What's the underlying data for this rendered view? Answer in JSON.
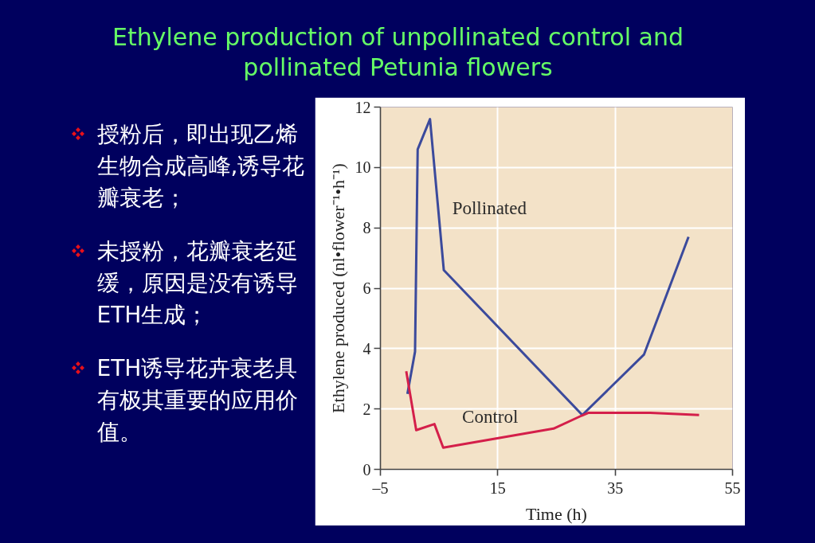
{
  "chart_data": {
    "type": "line",
    "title": "Ethylene production of unpollinated control and pollinated Petunia flowers",
    "xlabel": "Time (h)",
    "ylabel": "Ethylene produced (nl•flower⁻¹•h⁻¹)",
    "xlim": [
      -5,
      55
    ],
    "ylim": [
      0,
      12
    ],
    "xticks": [
      {
        "value": -5,
        "label": "–5"
      },
      15,
      35,
      55
    ],
    "yticks": [
      0,
      2,
      4,
      6,
      8,
      10,
      12
    ],
    "grid": true,
    "legend": false,
    "marker": "none",
    "line_style": "solid",
    "series": [
      {
        "name": "Pollinated",
        "color": "#3b4a9c",
        "x": [
          -0.4,
          0.9,
          1.35,
          3.45,
          5.8,
          29.4,
          39.9,
          47.5
        ],
        "values": [
          2.5,
          3.9,
          10.6,
          11.6,
          6.6,
          1.8,
          3.8,
          7.7
        ]
      },
      {
        "name": "Control",
        "color": "#d41f4a",
        "x": [
          -0.6,
          1.1,
          4.2,
          5.7,
          24.5,
          29.3,
          30.4,
          41,
          49.3
        ],
        "values": [
          3.25,
          1.3,
          1.5,
          0.72,
          1.35,
          1.78,
          1.87,
          1.87,
          1.8
        ]
      }
    ],
    "annotations": [
      "授粉后，即出现乙烯生物合成高峰,诱导花瓣衰老；",
      "未授粉，花瓣衰老延缓，原因是没有诱导ETH生成；",
      "ETH诱导花卉衰老具有极其重要的应用价值。"
    ]
  }
}
